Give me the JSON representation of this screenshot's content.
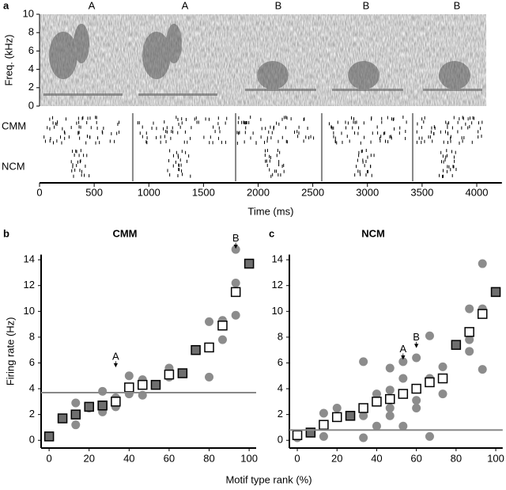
{
  "chart_data": [
    {
      "type": "raster",
      "panel_label": "a",
      "ylabel": "Freq. (kHz)",
      "xlabel": "Time (ms)",
      "xlim": [
        0,
        4230
      ],
      "xticks": [
        0,
        500,
        1000,
        1500,
        2000,
        2500,
        3000,
        3500,
        4000
      ],
      "ylim": [
        0,
        10
      ],
      "yticks": [
        0,
        2,
        4,
        6,
        8,
        10
      ],
      "motifs": {
        "labels": [
          "A",
          "A",
          "B",
          "B",
          "B"
        ],
        "x": [
          477,
          1331,
          2184,
          2987,
          3819
        ]
      },
      "rows": [
        "CMM",
        "NCM"
      ],
      "motif_boundaries": [
        853,
        1794,
        2582,
        3414
      ]
    },
    {
      "type": "scatter",
      "panel_label": "b",
      "title": "CMM",
      "ylabel": "Firing rate (Hz)",
      "xlim": [
        -4,
        103.5
      ],
      "xticks": [
        0,
        20,
        40,
        60,
        80,
        100
      ],
      "ylim": [
        -0.6,
        14.4
      ],
      "yticks": [
        0,
        2,
        4,
        6,
        8,
        10,
        12,
        14
      ],
      "reference_line": 3.7,
      "series": [
        {
          "marker": "circle",
          "color": "#8c8c8c",
          "x": [
            13.3,
            13.3,
            20,
            26.7,
            26.7,
            26.7,
            33.3,
            33.3,
            40,
            40,
            46.7,
            46.7,
            60,
            60,
            80,
            80,
            86.7,
            86.7,
            93.3,
            93.3,
            93.3
          ],
          "values": [
            2.9,
            1.2,
            2.5,
            3.8,
            2.2,
            2.5,
            3.3,
            2.6,
            5.0,
            3.6,
            4.7,
            3.5,
            5.6,
            4.9,
            9.2,
            4.9,
            9.3,
            7.8,
            14.8,
            12.2,
            9.7
          ]
        },
        {
          "marker": "filled-square",
          "color": "#6e6e6e",
          "x": [
            0,
            6.7,
            13.3,
            20,
            26.7,
            53.3,
            66.7,
            73.3,
            100
          ],
          "values": [
            0.3,
            1.7,
            2.0,
            2.6,
            2.7,
            4.3,
            5.2,
            7.0,
            13.7
          ]
        },
        {
          "marker": "open-square",
          "color": "#ffffff",
          "x": [
            33.3,
            40,
            46.7,
            60,
            80,
            86.7,
            93.3
          ],
          "values": [
            3.0,
            4.1,
            4.3,
            5.1,
            7.2,
            8.9,
            11.5
          ]
        }
      ],
      "annotations": [
        {
          "text": "A",
          "x": 33.3,
          "y": 6.2
        },
        {
          "text": "B",
          "x": 93.3,
          "y": 15.4
        }
      ]
    },
    {
      "type": "scatter",
      "panel_label": "c",
      "title": "NCM",
      "xlabel": "Motif type rank (%)",
      "xlim": [
        -4,
        103.5
      ],
      "xticks": [
        0,
        20,
        40,
        60,
        80,
        100
      ],
      "ylim": [
        -0.6,
        14.4
      ],
      "yticks": [
        0,
        2,
        4,
        6,
        8,
        10,
        12,
        14
      ],
      "reference_line": 0.8,
      "series": [
        {
          "marker": "circle",
          "color": "#8c8c8c",
          "x": [
            0,
            13.3,
            13.3,
            20,
            33.3,
            33.3,
            33.3,
            40,
            40,
            46.7,
            46.7,
            46.7,
            46.7,
            53.3,
            53.3,
            53.3,
            60,
            60,
            60,
            66.7,
            66.7,
            66.7,
            73.3,
            73.3,
            86.7,
            86.7,
            86.7,
            93.3,
            93.3,
            93.3
          ],
          "values": [
            0.2,
            2.1,
            0.3,
            2.5,
            6.1,
            1.9,
            0.2,
            3.6,
            1.1,
            5.6,
            3.9,
            2.5,
            1.9,
            6.1,
            4.8,
            1.1,
            6.4,
            3.1,
            2.5,
            8.1,
            4.8,
            0.3,
            5.7,
            3.6,
            10.2,
            7.8,
            6.9,
            13.7,
            10.2,
            5.5
          ]
        },
        {
          "marker": "filled-square",
          "color": "#6e6e6e",
          "x": [
            6.7,
            26.7,
            80,
            100
          ],
          "values": [
            0.6,
            1.9,
            7.4,
            11.5
          ]
        },
        {
          "marker": "open-square",
          "color": "#ffffff",
          "x": [
            0,
            13.3,
            20,
            33.3,
            40,
            46.7,
            53.3,
            60,
            66.7,
            73.3,
            86.7,
            93.3
          ],
          "values": [
            0.4,
            1.2,
            1.8,
            2.5,
            3.0,
            3.2,
            3.6,
            4.0,
            4.5,
            4.8,
            8.4,
            9.8
          ]
        }
      ],
      "annotations": [
        {
          "text": "A",
          "x": 53.3,
          "y": 6.8
        },
        {
          "text": "B",
          "x": 60,
          "y": 7.7
        }
      ]
    }
  ]
}
